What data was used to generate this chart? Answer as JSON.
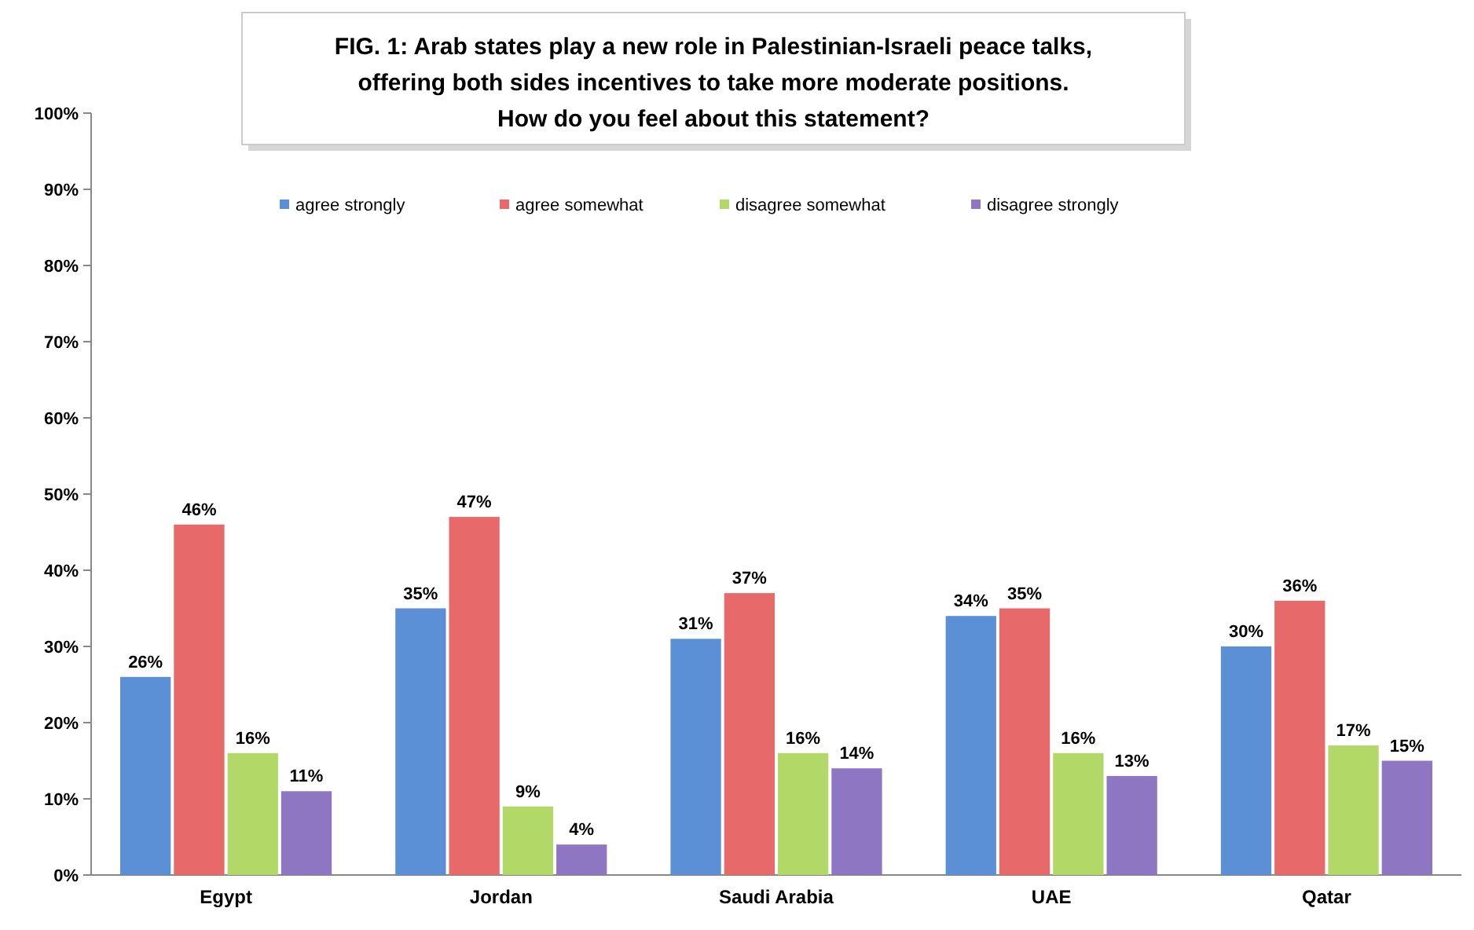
{
  "chart_data": {
    "type": "bar",
    "title": "FIG. 1: Arab states play a new role in Palestinian-Israeli peace talks,\noffering both sides incentives to take more moderate positions.\nHow do you feel about this statement?",
    "categories": [
      "Egypt",
      "Jordan",
      "Saudi Arabia",
      "UAE",
      "Qatar"
    ],
    "series": [
      {
        "name": "agree strongly",
        "color": "#5b8fd6",
        "values": [
          26,
          35,
          31,
          34,
          30
        ]
      },
      {
        "name": "agree somewhat",
        "color": "#e8696a",
        "values": [
          46,
          47,
          37,
          35,
          36
        ]
      },
      {
        "name": "disagree somewhat",
        "color": "#b2d867",
        "values": [
          16,
          9,
          16,
          16,
          17
        ]
      },
      {
        "name": "disagree strongly",
        "color": "#8e76c2",
        "values": [
          11,
          4,
          14,
          13,
          15
        ]
      }
    ],
    "ylim": [
      0,
      100
    ],
    "yticks": [
      {
        "value": 0,
        "label": "0%"
      },
      {
        "value": 10,
        "label": "10%"
      },
      {
        "value": 20,
        "label": "20%"
      },
      {
        "value": 30,
        "label": "30%"
      },
      {
        "value": 40,
        "label": "40%"
      },
      {
        "value": 50,
        "label": "50%"
      },
      {
        "value": 60,
        "label": "60%"
      },
      {
        "value": 70,
        "label": "70%"
      },
      {
        "value": 80,
        "label": "80%"
      },
      {
        "value": 90,
        "label": "90%"
      },
      {
        "value": 100,
        "label": "100%"
      }
    ],
    "value_labels": [
      [
        "26%",
        "35%",
        "31%",
        "34%",
        "30%"
      ],
      [
        "46%",
        "47%",
        "37%",
        "35%",
        "36%"
      ],
      [
        "16%",
        "9%",
        "16%",
        "16%",
        "17%"
      ],
      [
        "11%",
        "4%",
        "14%",
        "13%",
        "15%"
      ]
    ],
    "legend": "top"
  }
}
